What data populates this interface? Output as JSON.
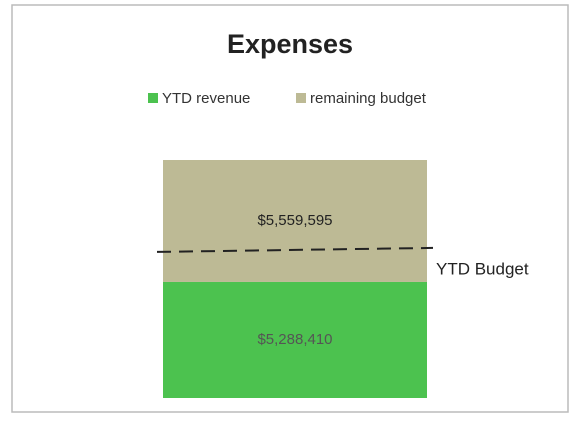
{
  "chart_data": {
    "type": "stacked_bar",
    "title": "Expenses",
    "categories": [
      null
    ],
    "series": [
      {
        "name": "YTD revenue",
        "color": "#4cc24f",
        "values": [
          5288410
        ],
        "value_labels": [
          "$5,288,410"
        ]
      },
      {
        "name": "remaining budget",
        "color": "#bdba95",
        "values": [
          5559595
        ],
        "value_labels": [
          "$5,559,595"
        ]
      }
    ],
    "annotation": {
      "label": "YTD Budget",
      "value": 6750000
    }
  }
}
